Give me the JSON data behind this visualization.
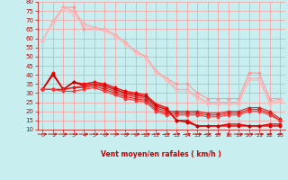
{
  "x": [
    0,
    1,
    2,
    3,
    4,
    5,
    6,
    7,
    8,
    9,
    10,
    11,
    12,
    13,
    14,
    15,
    16,
    17,
    18,
    19,
    20,
    21,
    22,
    23
  ],
  "line1": [
    59,
    69,
    77,
    77,
    65,
    65,
    65,
    62,
    58,
    53,
    50,
    42,
    38,
    35,
    35,
    30,
    27,
    27,
    27,
    27,
    41,
    41,
    27,
    27
  ],
  "line2": [
    59,
    69,
    77,
    75,
    68,
    66,
    65,
    62,
    58,
    53,
    50,
    42,
    38,
    32,
    32,
    28,
    25,
    25,
    25,
    25,
    38,
    38,
    25,
    27
  ],
  "line3": [
    59,
    68,
    76,
    73,
    67,
    65,
    64,
    61,
    57,
    52,
    49,
    41,
    37,
    31,
    31,
    27,
    24,
    24,
    24,
    24,
    37,
    37,
    24,
    26
  ],
  "line4": [
    32,
    41,
    32,
    36,
    35,
    36,
    35,
    33,
    31,
    30,
    29,
    24,
    22,
    15,
    15,
    12,
    12,
    12,
    13,
    13,
    12,
    12,
    13,
    13
  ],
  "line5": [
    32,
    40,
    32,
    36,
    34,
    35,
    34,
    32,
    30,
    29,
    28,
    23,
    21,
    15,
    14,
    12,
    12,
    12,
    12,
    12,
    12,
    12,
    12,
    12
  ],
  "line6": [
    32,
    32,
    32,
    33,
    34,
    35,
    33,
    31,
    29,
    28,
    27,
    22,
    20,
    20,
    20,
    20,
    19,
    19,
    20,
    20,
    22,
    22,
    20,
    16
  ],
  "line7": [
    32,
    32,
    32,
    33,
    33,
    34,
    32,
    30,
    28,
    27,
    26,
    21,
    19,
    19,
    19,
    19,
    18,
    18,
    19,
    19,
    21,
    21,
    19,
    15
  ],
  "line8": [
    32,
    32,
    31,
    31,
    32,
    33,
    31,
    29,
    27,
    26,
    25,
    20,
    18,
    18,
    18,
    18,
    17,
    17,
    18,
    18,
    20,
    20,
    18,
    15
  ],
  "background_color": "#c8eef0",
  "grid_color": "#ff9999",
  "xlabel": "Vent moyen/en rafales ( km/h )",
  "ylim": [
    10,
    80
  ],
  "xlim": [
    0,
    23
  ],
  "yticks": [
    10,
    15,
    20,
    25,
    30,
    35,
    40,
    45,
    50,
    55,
    60,
    65,
    70,
    75,
    80
  ],
  "xticks": [
    0,
    1,
    2,
    3,
    4,
    5,
    6,
    7,
    8,
    9,
    10,
    11,
    12,
    13,
    14,
    15,
    16,
    17,
    18,
    19,
    20,
    21,
    22,
    23
  ],
  "arrow_angles": [
    90,
    90,
    90,
    90,
    90,
    90,
    90,
    90,
    90,
    90,
    80,
    70,
    60,
    60,
    60,
    90,
    60,
    45,
    0,
    90,
    90,
    90,
    45,
    45
  ]
}
